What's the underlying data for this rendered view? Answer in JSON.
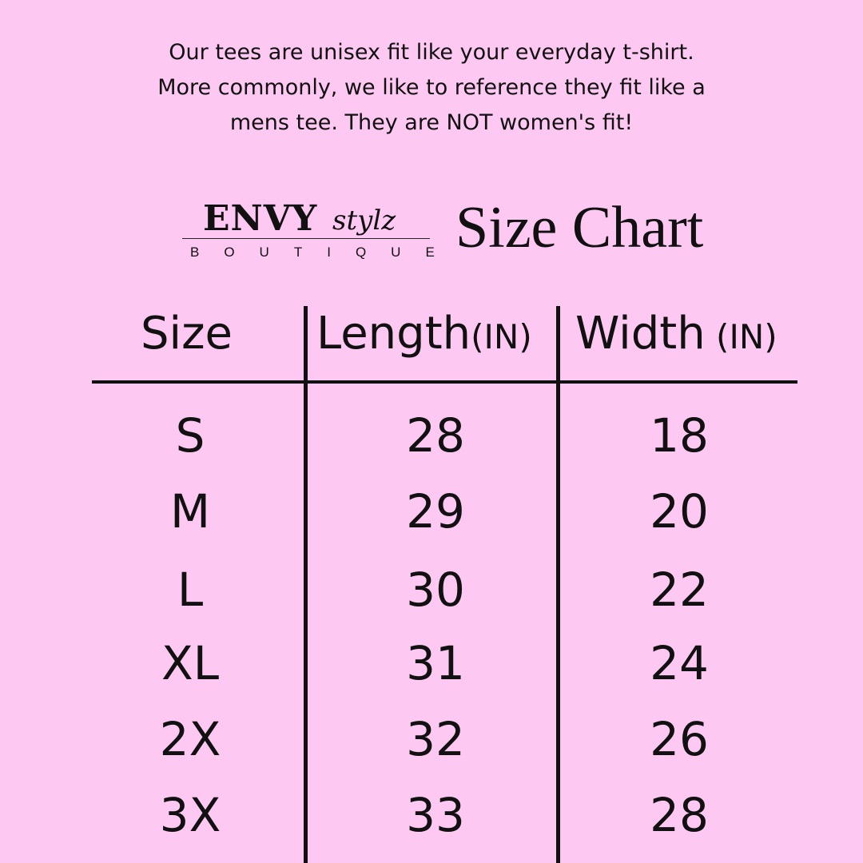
{
  "intro": {
    "lines": [
      "Our tees are unisex fit like your everyday t-shirt.",
      "More commonly, we like to reference they fit like a",
      "mens tee. They are NOT women's fit!"
    ]
  },
  "logo": {
    "brand": "ENVY",
    "script": "stylz",
    "sub": "BOUTIQUE"
  },
  "title": "Size Chart",
  "table": {
    "headers": [
      {
        "label": "Size",
        "unit": ""
      },
      {
        "label": "Length",
        "unit": "(IN)"
      },
      {
        "label": "Width",
        "unit": " (IN)"
      }
    ],
    "rows": [
      [
        "S",
        "28",
        "18"
      ],
      [
        "M",
        "29",
        "20"
      ],
      [
        "L",
        "30",
        "22"
      ],
      [
        "XL",
        "31",
        "24"
      ],
      [
        "2X",
        "32",
        "26"
      ],
      [
        "3X",
        "33",
        "28"
      ]
    ]
  },
  "colors": {
    "background": "#fdc8f1",
    "text": "#111111"
  }
}
